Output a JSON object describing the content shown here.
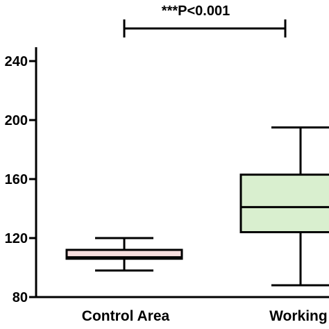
{
  "chart_data": {
    "type": "boxplot",
    "title": "",
    "xlabel": "",
    "ylabel": "",
    "ylim": [
      80,
      250
    ],
    "yticks": [
      "80",
      "120",
      "160",
      "200",
      "240"
    ],
    "categories": [
      "Control Area",
      "Working A"
    ],
    "boxes": [
      {
        "category": "Control Area",
        "min": 98,
        "q1": 106,
        "median": 107,
        "q3": 112,
        "max": 120,
        "color": "#f7dede"
      },
      {
        "category": "Working A",
        "min": 88,
        "q1": 124,
        "median": 141,
        "q3": 163,
        "max": 195,
        "color": "#d9efcf"
      }
    ],
    "annotation": "***P<0.001"
  }
}
